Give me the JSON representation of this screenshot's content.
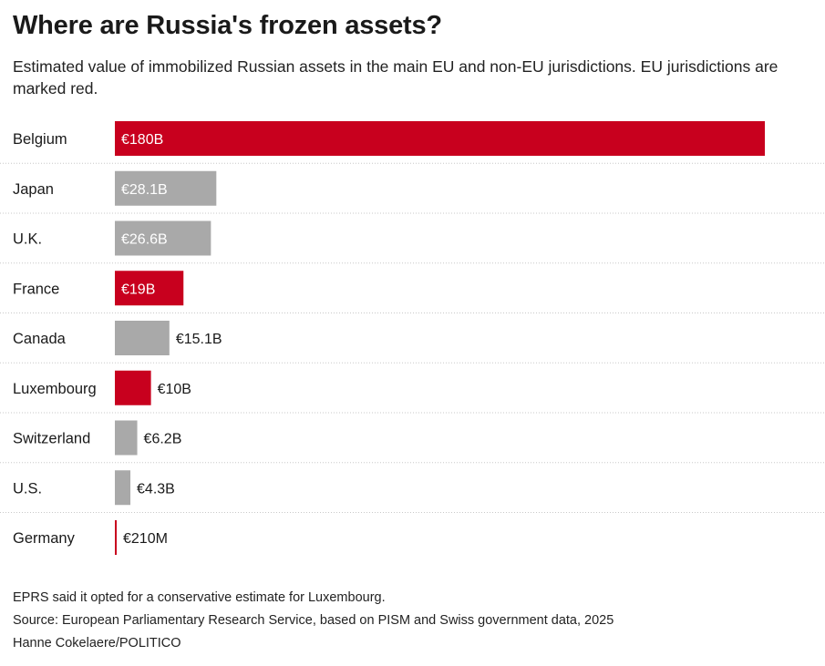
{
  "header": {
    "title": "Where are Russia's frozen assets?",
    "subtitle": "Estimated value of immobilized Russian assets in the main EU and non-EU jurisdictions. EU jurisdictions are marked red."
  },
  "footer": {
    "note": "EPRS said it opted for a conservative estimate for Luxembourg.",
    "source": "Source: European Parliamentary Research Service, based on PISM and Swiss government data, 2025",
    "credit": "Hanne Cokelaere/POLITICO"
  },
  "colors": {
    "eu": "#c8001e",
    "non_eu": "#a9a9a9",
    "row_divider": "#c8c8c8",
    "label_inside": "#ffffff",
    "label_outside": "#1a1a1a"
  },
  "chart_data": {
    "type": "bar",
    "orientation": "horizontal",
    "title": "Where are Russia's frozen assets?",
    "unit": "billion EUR",
    "xlim": [
      0,
      180
    ],
    "categories": [
      "Belgium",
      "Japan",
      "U.K.",
      "France",
      "Canada",
      "Luxembourg",
      "Switzerland",
      "U.S.",
      "Germany"
    ],
    "values": [
      180,
      28.1,
      26.6,
      19,
      15.1,
      10,
      6.2,
      4.3,
      0.21
    ],
    "value_labels": [
      "€180B",
      "€28.1B",
      "€26.6B",
      "€19B",
      "€15.1B",
      "€10B",
      "€6.2B",
      "€4.3B",
      "€210M"
    ],
    "eu": [
      true,
      false,
      false,
      true,
      false,
      true,
      false,
      false,
      true
    ],
    "legend": "EU jurisdictions are marked red"
  }
}
